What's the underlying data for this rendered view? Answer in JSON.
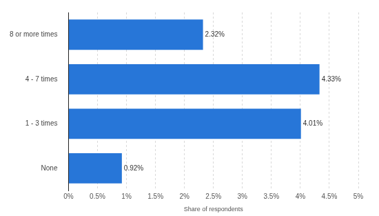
{
  "chart_data": {
    "type": "bar",
    "orientation": "horizontal",
    "categories": [
      "8 or more times",
      "4 - 7 times",
      "1 - 3 times",
      "None"
    ],
    "values": [
      2.32,
      4.33,
      4.01,
      0.92
    ],
    "value_labels": [
      "2.32%",
      "4.33%",
      "4.01%",
      "0.92%"
    ],
    "data_labels": true,
    "color": "#2776d8",
    "xlabel": "Share of respondents",
    "xlim": [
      0,
      5
    ],
    "xticks": [
      {
        "value": 0,
        "label": "0%"
      },
      {
        "value": 0.5,
        "label": "0.5%"
      },
      {
        "value": 1,
        "label": "1%"
      },
      {
        "value": 1.5,
        "label": "1.5%"
      },
      {
        "value": 2,
        "label": "2%"
      },
      {
        "value": 2.5,
        "label": "2.5%"
      },
      {
        "value": 3,
        "label": "3%"
      },
      {
        "value": 3.5,
        "label": "3.5%"
      },
      {
        "value": 4,
        "label": "4%"
      },
      {
        "value": 4.5,
        "label": "4.5%"
      },
      {
        "value": 5,
        "label": "5%"
      }
    ],
    "grid": true
  }
}
